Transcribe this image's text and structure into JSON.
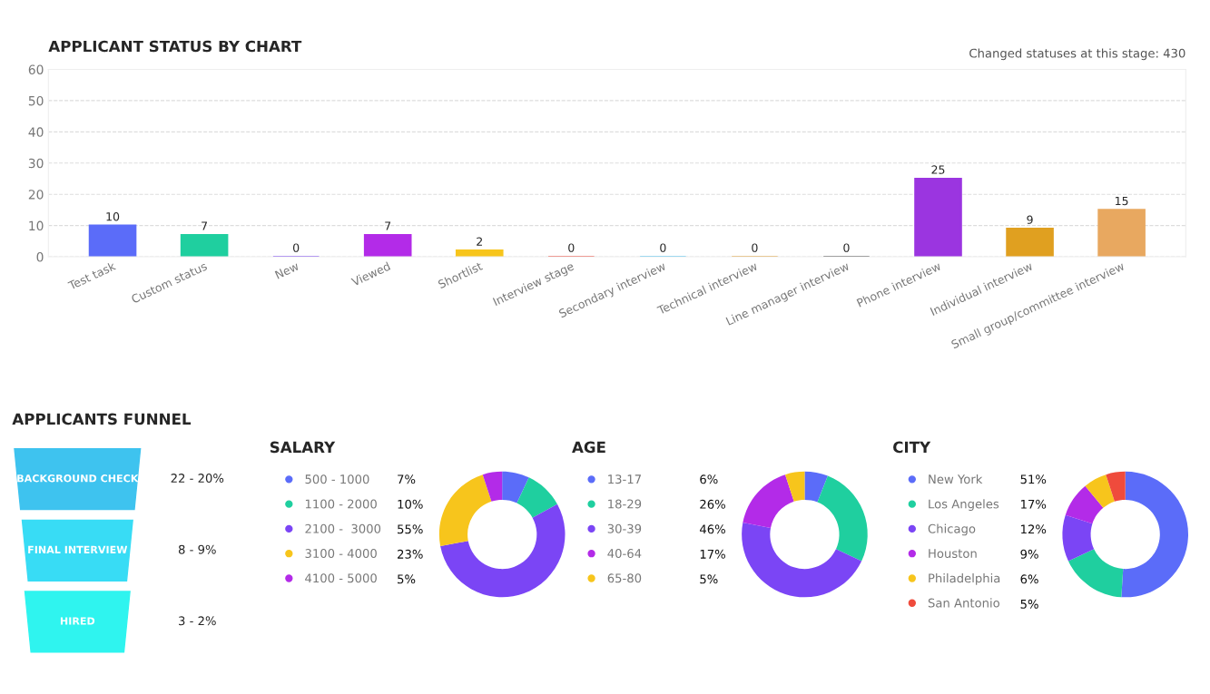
{
  "chart_data": [
    {
      "type": "bar",
      "title": "APPLICANT STATUS BY CHART",
      "annotations": [
        "Changed statuses at this stage: 430"
      ],
      "categories": [
        "Test task",
        "Custom status",
        "New",
        "Viewed",
        "Shortlist",
        "Interview stage",
        "Secondary interview",
        "Technical interview",
        "Line manager interview",
        "Phone interview",
        "Individual interview",
        "Small group/committee interview"
      ],
      "values": [
        10,
        7,
        0,
        7,
        2,
        0,
        0,
        0,
        0,
        25,
        9,
        15
      ],
      "colors": [
        "#5b6cf9",
        "#1fcf9f",
        "#7b45f5",
        "#b32be8",
        "#f7c51c",
        "#ef4b3c",
        "#4fc3f0",
        "#e3a33c",
        "#555555",
        "#9b35e0",
        "#e0a020",
        "#e8a860"
      ],
      "data_labels": true,
      "ylim": [
        0,
        60
      ],
      "yticks": [
        0,
        10,
        20,
        30,
        40,
        50,
        60
      ],
      "grid": "y"
    },
    {
      "type": "other",
      "title": "APPLICANTS FUNNEL",
      "categories": [
        "BACKGROUND CHECK",
        "FINAL INTERVIEW",
        "HIRED"
      ],
      "values": [
        22,
        8,
        3
      ],
      "value_labels": [
        "22 - 20%",
        "8 - 9%",
        "3 - 2%"
      ],
      "colors": [
        "#3ec3ef",
        "#38dcf5",
        "#2ff4ef"
      ]
    },
    {
      "type": "donut",
      "title": "SALARY",
      "categories": [
        "500 - 1000",
        "1100 - 2000",
        "2100 -  3000",
        "3100 - 4000",
        "4100 - 5000"
      ],
      "values": [
        7,
        10,
        55,
        23,
        5
      ],
      "value_labels": [
        "7%",
        "10%",
        "55%",
        "23%",
        "5%"
      ],
      "colors": [
        "#5b6cf9",
        "#1fcf9f",
        "#7b45f5",
        "#f7c51c",
        "#b32be8"
      ],
      "legend": "left"
    },
    {
      "type": "donut",
      "title": "AGE",
      "categories": [
        "13-17",
        "18-29",
        "30-39",
        "40-64",
        "65-80"
      ],
      "values": [
        6,
        26,
        46,
        17,
        5
      ],
      "value_labels": [
        "6%",
        "26%",
        "46%",
        "17%",
        "5%"
      ],
      "colors": [
        "#5b6cf9",
        "#1fcf9f",
        "#7b45f5",
        "#b32be8",
        "#f7c51c"
      ],
      "legend": "left"
    },
    {
      "type": "donut",
      "title": "CITY",
      "categories": [
        "New York",
        "Los Angeles",
        "Chicago",
        "Houston",
        "Philadelphia",
        "San Antonio"
      ],
      "values": [
        51,
        17,
        12,
        9,
        6,
        5
      ],
      "value_labels": [
        "51%",
        "17%",
        "12%",
        "9%",
        "6%",
        "5%"
      ],
      "colors": [
        "#5b6cf9",
        "#1fcf9f",
        "#7b45f5",
        "#b32be8",
        "#f7c51c",
        "#ef4b3c"
      ],
      "legend": "left"
    }
  ]
}
